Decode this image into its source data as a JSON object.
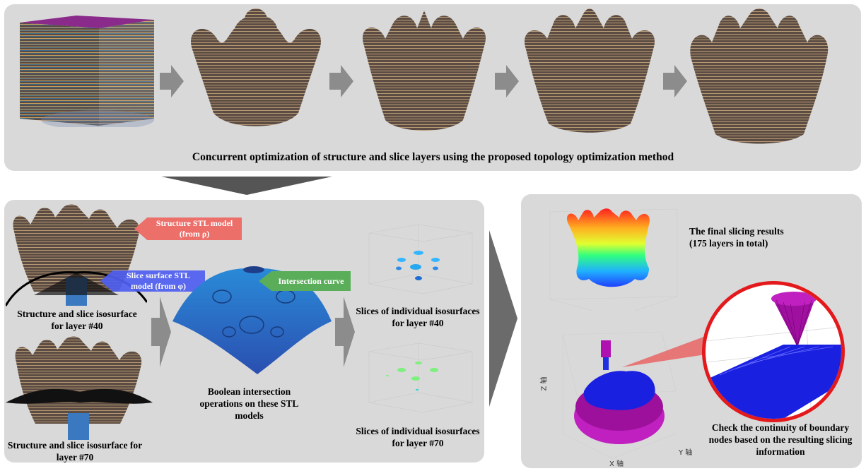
{
  "top_panel": {
    "caption": "Concurrent optimization of structure and slice layers using the proposed topology optimization method"
  },
  "left_panel": {
    "structure_stl_tag": "Structure STL model (from ρ)",
    "slice_surface_tag": "Slice surface STL model (from φ)",
    "intersection_tag": "Intersection curve",
    "caption_layer40": "Structure and slice isosurface for layer #40",
    "caption_layer70": "Structure and slice isosurface for layer #70",
    "caption_boolean": "Boolean intersection operations on these STL models",
    "caption_slices40": "Slices of individual isosurfaces for layer #40",
    "caption_slices70": "Slices of individual isosurfaces for layer #70"
  },
  "right_panel": {
    "caption_final": "The final slicing results (175 layers in total)",
    "caption_check": "Check the continuity of boundary nodes based on the resulting slicing information",
    "axis_z": "Z 轴",
    "axis_x": "X 轴",
    "axis_y": "Y 轴"
  },
  "colors": {
    "panel": "#d9d9d9",
    "arrow": "#808080",
    "structure": "#6b5a4e",
    "surface_blue": "#2f7fd6",
    "tag_red": "#ec6f6a",
    "tag_blue": "#4f5ff0",
    "tag_green": "#5aae5a",
    "magnifier_ring": "#e3191c",
    "magenta": "#b000b0"
  }
}
